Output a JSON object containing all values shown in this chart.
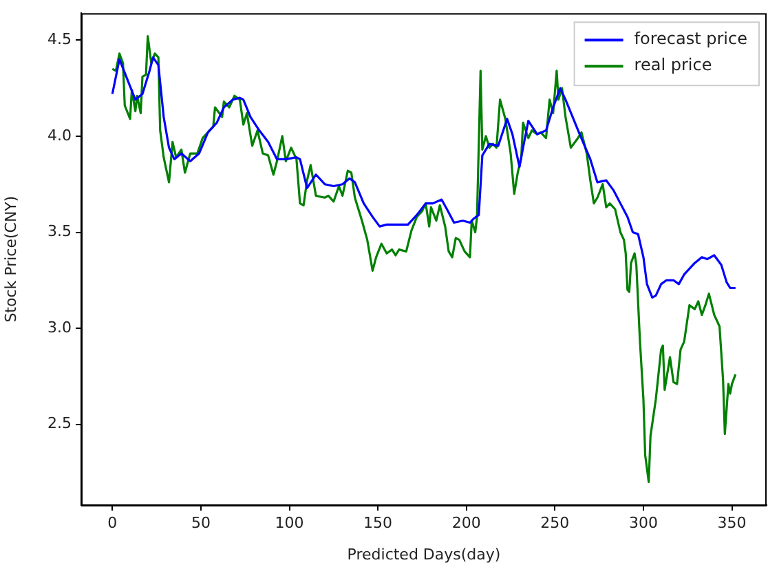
{
  "chart_data": {
    "type": "line",
    "xlabel": "Predicted Days(day)",
    "ylabel": "Stock Price(CNY)",
    "xlim": [
      -17.6,
      369.6
    ],
    "ylim": [
      2.08,
      4.64
    ],
    "xticks": [
      0,
      50,
      100,
      150,
      200,
      250,
      300,
      350
    ],
    "yticks": [
      {
        "value": 2.5,
        "label": "2.5"
      },
      {
        "value": 3.0,
        "label": "3.0"
      },
      {
        "value": 3.5,
        "label": "3.5"
      },
      {
        "value": 4.0,
        "label": "4.0"
      },
      {
        "value": 4.5,
        "label": "4.5"
      }
    ],
    "grid": false,
    "legend": "top right",
    "marker": "none",
    "line_style": "solid",
    "series": [
      {
        "name": "forecast price",
        "color": "#0000ff",
        "x": [
          0,
          4,
          10,
          13,
          17,
          21,
          23,
          26,
          29,
          32,
          35,
          39,
          44,
          49,
          54,
          59,
          63,
          68,
          72,
          74,
          78,
          83,
          88,
          93,
          98,
          104,
          106,
          110,
          115,
          120,
          125,
          130,
          134,
          137,
          142,
          147,
          151,
          155,
          167,
          172,
          177,
          181,
          186,
          189,
          193,
          198,
          202,
          204,
          207,
          209,
          213,
          218,
          223,
          226,
          230,
          232,
          235,
          240,
          245,
          249,
          253,
          256,
          260,
          264,
          270,
          274,
          279,
          283,
          287,
          291,
          294,
          297,
          300,
          302,
          305,
          307,
          310,
          313,
          317,
          320,
          323,
          329,
          333,
          336,
          340,
          344,
          347,
          349,
          352
        ],
        "values": [
          4.22,
          4.4,
          4.26,
          4.19,
          4.22,
          4.34,
          4.41,
          4.37,
          4.1,
          3.94,
          3.88,
          3.91,
          3.87,
          3.91,
          4.02,
          4.07,
          4.15,
          4.19,
          4.2,
          4.19,
          4.1,
          4.03,
          3.97,
          3.88,
          3.88,
          3.89,
          3.88,
          3.73,
          3.8,
          3.75,
          3.74,
          3.75,
          3.78,
          3.76,
          3.65,
          3.58,
          3.53,
          3.54,
          3.54,
          3.59,
          3.65,
          3.65,
          3.67,
          3.62,
          3.55,
          3.56,
          3.55,
          3.57,
          3.59,
          3.9,
          3.96,
          3.95,
          4.09,
          4.01,
          3.84,
          3.94,
          4.08,
          4.01,
          4.03,
          4.15,
          4.25,
          4.19,
          4.1,
          4.01,
          3.88,
          3.76,
          3.77,
          3.72,
          3.65,
          3.58,
          3.5,
          3.49,
          3.37,
          3.23,
          3.16,
          3.17,
          3.23,
          3.25,
          3.25,
          3.23,
          3.28,
          3.34,
          3.37,
          3.36,
          3.38,
          3.33,
          3.24,
          3.21,
          3.21
        ]
      },
      {
        "name": "real price",
        "color": "#008000",
        "x": [
          0,
          2,
          4,
          6,
          7,
          10,
          11,
          13,
          14,
          16,
          17,
          19,
          20,
          22,
          24,
          26,
          27,
          29,
          32,
          34,
          36,
          39,
          41,
          44,
          48,
          51,
          57,
          58,
          62,
          63,
          66,
          69,
          72,
          74,
          76,
          79,
          82,
          85,
          88,
          91,
          93,
          96,
          98,
          101,
          104,
          106,
          108,
          110,
          112,
          115,
          120,
          122,
          125,
          128,
          130,
          133,
          135,
          137,
          141,
          144,
          147,
          149,
          152,
          155,
          158,
          160,
          162,
          166,
          169,
          172,
          175,
          177,
          179,
          180,
          183,
          185,
          188,
          190,
          192,
          194,
          196,
          199,
          202,
          203,
          205,
          206,
          208,
          209,
          211,
          213,
          215,
          217,
          219,
          222,
          225,
          227,
          229,
          231,
          232,
          235,
          237,
          240,
          242,
          245,
          247,
          249,
          251,
          252,
          254,
          256,
          259,
          263,
          265,
          268,
          270,
          272,
          274,
          277,
          279,
          281,
          284,
          287,
          289,
          290,
          291,
          292,
          293,
          295,
          296,
          298,
          300,
          301,
          303,
          304,
          307,
          310,
          311,
          312,
          315,
          317,
          319,
          321,
          323,
          326,
          329,
          331,
          333,
          335,
          337,
          340,
          342,
          343,
          345,
          346,
          348,
          349,
          350,
          352
        ],
        "values": [
          4.35,
          4.34,
          4.43,
          4.38,
          4.16,
          4.09,
          4.24,
          4.13,
          4.21,
          4.12,
          4.31,
          4.32,
          4.52,
          4.38,
          4.43,
          4.41,
          4.03,
          3.89,
          3.76,
          3.97,
          3.89,
          3.93,
          3.81,
          3.91,
          3.91,
          3.99,
          4.05,
          4.15,
          4.1,
          4.18,
          4.15,
          4.21,
          4.19,
          4.06,
          4.12,
          3.95,
          4.03,
          3.91,
          3.9,
          3.8,
          3.87,
          4.0,
          3.87,
          3.94,
          3.88,
          3.65,
          3.64,
          3.77,
          3.85,
          3.69,
          3.68,
          3.69,
          3.66,
          3.74,
          3.69,
          3.82,
          3.81,
          3.68,
          3.56,
          3.46,
          3.3,
          3.37,
          3.44,
          3.39,
          3.41,
          3.38,
          3.41,
          3.4,
          3.51,
          3.58,
          3.61,
          3.65,
          3.53,
          3.63,
          3.56,
          3.64,
          3.53,
          3.4,
          3.37,
          3.47,
          3.46,
          3.4,
          3.37,
          3.56,
          3.5,
          3.58,
          4.34,
          3.93,
          4.0,
          3.94,
          3.96,
          3.94,
          4.19,
          4.09,
          3.91,
          3.7,
          3.81,
          3.89,
          4.07,
          3.99,
          4.03,
          4.01,
          4.02,
          3.99,
          4.19,
          4.12,
          4.34,
          4.19,
          4.25,
          4.1,
          3.94,
          3.99,
          4.02,
          3.91,
          3.77,
          3.65,
          3.68,
          3.75,
          3.63,
          3.65,
          3.62,
          3.5,
          3.46,
          3.39,
          3.2,
          3.19,
          3.34,
          3.39,
          3.33,
          2.94,
          2.63,
          2.34,
          2.2,
          2.44,
          2.63,
          2.89,
          2.91,
          2.68,
          2.85,
          2.72,
          2.71,
          2.89,
          2.93,
          3.12,
          3.1,
          3.14,
          3.07,
          3.12,
          3.18,
          3.07,
          3.03,
          3.01,
          2.73,
          2.45,
          2.71,
          2.66,
          2.71,
          2.76
        ]
      }
    ]
  }
}
